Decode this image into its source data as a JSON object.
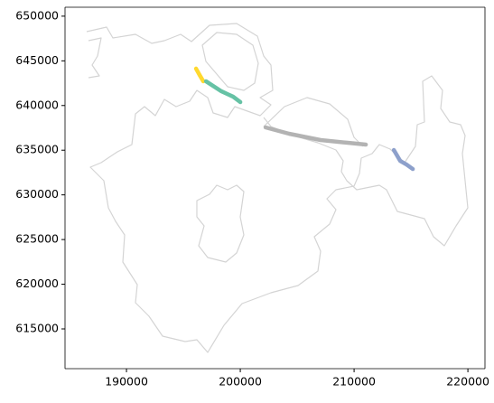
{
  "chart_data": {
    "type": "line",
    "xlim": [
      184600,
      221500
    ],
    "ylim": [
      610550,
      651000
    ],
    "xticks": [
      190000,
      200000,
      210000,
      220000
    ],
    "yticks": [
      615000,
      620000,
      625000,
      630000,
      635000,
      640000,
      645000,
      650000
    ],
    "series": [
      {
        "color": "#ffd92f",
        "x": [
          196111,
          196430,
          196746
        ],
        "values": [
          644130,
          643400,
          642713
        ]
      },
      {
        "color": "#66c2a5",
        "x": [
          196984,
          198333,
          199365,
          200000
        ],
        "values": [
          642713,
          641600,
          640992,
          640385
        ]
      },
      {
        "color": "#b3b3b3",
        "x": [
          202222,
          204286,
          207063,
          209444,
          211032
        ],
        "values": [
          637551,
          636842,
          636134,
          635830,
          635628
        ]
      },
      {
        "color": "#8da0cb",
        "x": [
          213492,
          214048,
          214603,
          215159
        ],
        "values": [
          635020,
          633806,
          633401,
          632895
        ]
      }
    ]
  }
}
